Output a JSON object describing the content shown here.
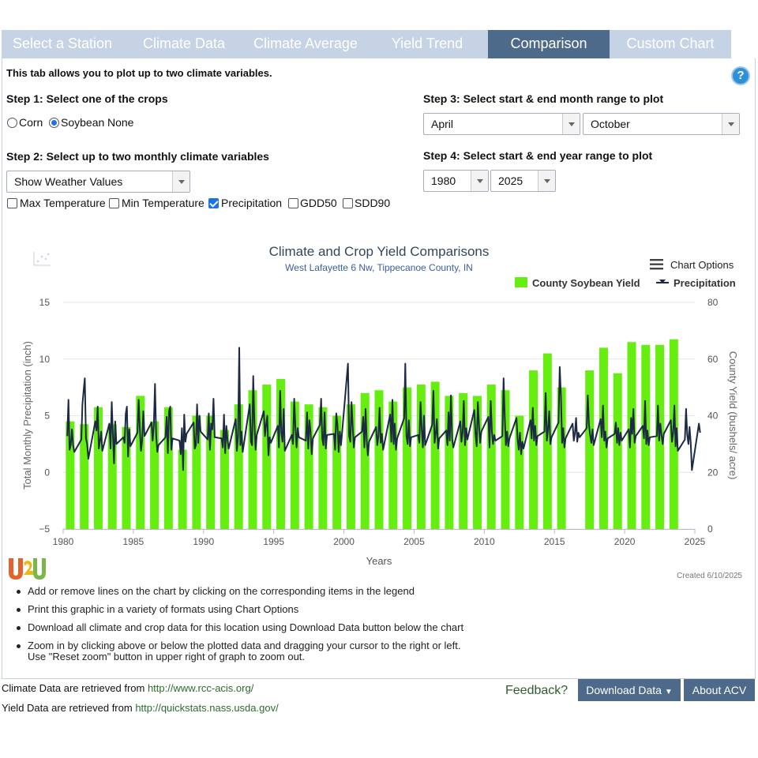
{
  "tabs": [
    {
      "label": "Select a Station",
      "active": false
    },
    {
      "label": "Climate Data",
      "active": false
    },
    {
      "label": "Climate Average",
      "active": false
    },
    {
      "label": "Yield Trend",
      "active": false
    },
    {
      "label": "Comparison",
      "active": true
    },
    {
      "label": "Custom Chart",
      "active": false
    }
  ],
  "intro": "This tab allows you to plot up to two climate variables.",
  "help_icon": "?",
  "step1": {
    "title": "Step 1: Select one of the crops",
    "options": [
      "Corn",
      "Soybean",
      "None"
    ],
    "selected": "Soybean"
  },
  "step2": {
    "title": "Step 2: Select up to two monthly climate variables",
    "mode": "Show Weather Values",
    "variables": [
      {
        "label": "Max Temperature",
        "checked": false
      },
      {
        "label": "Min Temperature",
        "checked": false
      },
      {
        "label": "Precipitation",
        "checked": true
      },
      {
        "label": "GDD50",
        "checked": false
      },
      {
        "label": "SDD90",
        "checked": false
      }
    ]
  },
  "step3": {
    "title": "Step 3: Select start & end month range to plot",
    "start": "April",
    "end": "October"
  },
  "step4": {
    "title": "Step 4: Select start & end year range to plot",
    "start": "1980",
    "end": "2025"
  },
  "chart_options": "Chart Options",
  "created": "Created 6/10/2025",
  "chart_data": {
    "type": "bar",
    "title": "Climate and Crop Yield Comparisons",
    "subtitle": "West Lafayette 6 Nw, Tippecanoe County, IN",
    "xlabel": "Years",
    "ylabel_left": "Total Monthly Precipitation (inch)",
    "ylabel_right": "County Yield (bushels/ acre)",
    "x_range": [
      1980,
      2025
    ],
    "x_ticks": [
      1980,
      1985,
      1990,
      1995,
      2000,
      2005,
      2010,
      2015,
      2020,
      2025
    ],
    "y_left_range": [
      -5,
      15
    ],
    "y_left_ticks": [
      -5,
      0,
      5,
      10,
      15
    ],
    "y_right_range": [
      0,
      80
    ],
    "y_right_ticks": [
      0,
      20,
      40,
      60,
      80
    ],
    "legend": [
      "County Soybean Yield",
      "Precipitation"
    ],
    "legend_position": "top-right",
    "colors": {
      "yield": "#66ee11",
      "precip": "#1c2a44"
    },
    "yield": {
      "name": "County Soybean Yield",
      "years": [
        1980,
        1981,
        1982,
        1983,
        1984,
        1985,
        1986,
        1987,
        1988,
        1989,
        1990,
        1991,
        1992,
        1993,
        1994,
        1995,
        1996,
        1997,
        1998,
        1999,
        2000,
        2001,
        2002,
        2003,
        2004,
        2005,
        2006,
        2007,
        2008,
        2009,
        2010,
        2011,
        2012,
        2013,
        2014,
        2015,
        2016,
        2017,
        2018,
        2019,
        2020,
        2021,
        2022,
        2023
      ],
      "values": [
        38,
        37,
        43,
        37,
        36,
        47,
        38,
        43,
        28,
        40,
        40,
        35,
        44,
        49,
        51,
        53,
        45,
        44,
        43,
        40,
        44,
        48,
        49,
        45,
        50,
        51,
        52,
        47,
        48,
        47,
        51,
        49,
        40,
        56,
        62,
        50,
        0,
        56,
        64,
        55,
        66,
        65,
        65,
        67
      ]
    },
    "precipitation": {
      "name": "Precipitation",
      "values": [
        3.2,
        6.4,
        2.0,
        2.4,
        3.8,
        2.4,
        1.8,
        2.9,
        6.0,
        7.2,
        8.3,
        3.0,
        2.5,
        1.2,
        4.5,
        3.7,
        5.8,
        2.1,
        2.8,
        3.6,
        1.9,
        4.3,
        2.1,
        6.2,
        3.3,
        0.8,
        4.5,
        2.5,
        3.1,
        2.6,
        5.2,
        5.8,
        1.4,
        3.8,
        2.3,
        3.5,
        6.4,
        4.0,
        1.9,
        2.8,
        5.4,
        3.2,
        4.4,
        2.8,
        4.1,
        7.8,
        3.2,
        1.8,
        2.4,
        3.1,
        4.9,
        1.7,
        5.4,
        5.8,
        2.0,
        3.0,
        2.8,
        1.6,
        3.9,
        0.2,
        5.1,
        2.7,
        3.4,
        4.4,
        2.1,
        2.4,
        6.0,
        2.6,
        5.0,
        3.6,
        2.9,
        5.2,
        2.0,
        4.3,
        3.8,
        6.5,
        3.1,
        3.0,
        2.2,
        5.1,
        1.7,
        4.1,
        2.9,
        2.1,
        4.7,
        1.9,
        3.2,
        11.0,
        2.4,
        3.6,
        1.8,
        6.0,
        2.7,
        2.4,
        8.5,
        4.4,
        2.0,
        3.3,
        5.4,
        3.2,
        4.2,
        5.0,
        1.5,
        3.1,
        2.6,
        4.1,
        2.2,
        7.2,
        3.5,
        2.7,
        5.6,
        1.9,
        3.3,
        2.5,
        6.5,
        4.0,
        2.2,
        3.9,
        3.1,
        2.8,
        5.3,
        2.1,
        4.6,
        3.6,
        1.6,
        3.0,
        4.2,
        6.5,
        3.0,
        2.4,
        5.3,
        2.1,
        3.3,
        3.4,
        2.0,
        5.2,
        4.2,
        1.8,
        3.6,
        2.4,
        9.6,
        3.2,
        2.7,
        6.2,
        4.0,
        2.2,
        3.1,
        3.6,
        4.9,
        2.2,
        5.6,
        2.9,
        1.5,
        2.7,
        4.0,
        2.4,
        3.2,
        5.7,
        2.6,
        3.4,
        2.0,
        5.1,
        2.7,
        6.4,
        2.5,
        4.3,
        2.0,
        3.0,
        4.8,
        9.6,
        3.2,
        2.5,
        4.6,
        2.3,
        3.1,
        3.3,
        2.6,
        6.2,
        3.8,
        2.2,
        5.0,
        2.4,
        4.2,
        7.2,
        2.6,
        3.4,
        4.7,
        2.1,
        3.0,
        3.7,
        2.4,
        5.3,
        2.8,
        6.8,
        3.0,
        2.2,
        4.5,
        2.7,
        3.5,
        6.3,
        2.4,
        3.9,
        2.9,
        5.5,
        3.4,
        2.3,
        6.2,
        4.1,
        2.6,
        3.6,
        4.9,
        2.2,
        6.3,
        3.6,
        2.5,
        3.3,
        2.8,
        3.2,
        8.3,
        4.8,
        2.4,
        3.6,
        2.3,
        3.0,
        4.8,
        2.9,
        2.0,
        3.5,
        1.6,
        2.7,
        2.1,
        4.6,
        3.0,
        5.7,
        2.8,
        4.1,
        2.4,
        3.2,
        3.6,
        7.0,
        2.8,
        3.8,
        5.4,
        2.5,
        3.1,
        4.4,
        9.3,
        6.8,
        2.6,
        3.9,
        2.2,
        3.0,
        4.3,
        2.8,
        3.4,
        4.8,
        2.7,
        3.5,
        3.1,
        3.9,
        6.8,
        4.2,
        3.3,
        2.6,
        3.8,
        2.4,
        4.7,
        3.1,
        5.9,
        2.8,
        3.6,
        2.2,
        3.0,
        3.4,
        4.4,
        2.6,
        3.9,
        2.4,
        3.5,
        2.8,
        3.8,
        2.2,
        4.8,
        3.4,
        5.6,
        2.6,
        3.2,
        4.1,
        3.0,
        6.3,
        2.5,
        3.7,
        2.4,
        3.1,
        3.2,
        5.9,
        2.8,
        4.3,
        3.3,
        2.5,
        3.4,
        4.6,
        2.7,
        3.5,
        5.9,
        2.3,
        3.9,
        1.9,
        2.9,
        5.6,
        3.3,
        2.5,
        4.0,
        2.6,
        0.2,
        4.3,
        3.5
      ]
    }
  },
  "bullets": [
    "Add or remove lines on the chart by clicking on the corresponding items in the legend",
    "Print this graphic in a variety of formats using Chart Options",
    "Download all climate and crop data for this location using Download Data button below the chart",
    "Zoom in by clicking above or below the plotted data and dragging your cursor to the right or left.\nUse \"Reset zoom\" button in upper right of graph to zoom out."
  ],
  "footer": {
    "climate_text": "Climate Data are retrieved from ",
    "climate_link": "http://www.rcc-acis.org/",
    "yield_text": "Yield Data are retrieved from ",
    "yield_link": "http://quickstats.nass.usda.gov/",
    "feedback": "Feedback?",
    "download_btn": "Download Data",
    "about_btn": "About ACV"
  }
}
